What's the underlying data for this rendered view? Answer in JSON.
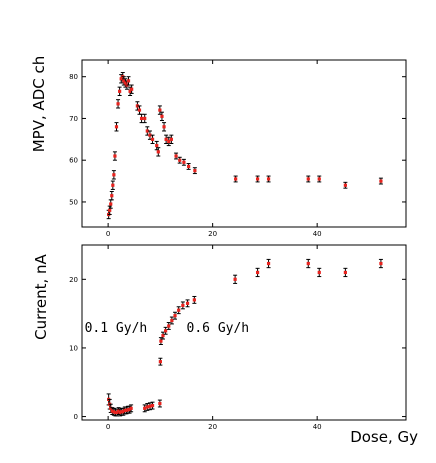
{
  "marker_color": "#e8231e",
  "errorbar_color": "#000000",
  "chart_data": [
    {
      "type": "scatter",
      "title": "",
      "xlabel": "",
      "ylabel": "MPV, ADC ch",
      "xlim": [
        -5,
        57
      ],
      "ylim": [
        44,
        84
      ],
      "xticks": [
        0,
        20,
        40
      ],
      "yticks": [
        50,
        60,
        70,
        80
      ],
      "grid": false,
      "series": [
        {
          "x": [
            0.1,
            0.3,
            0.5,
            0.7,
            0.9,
            1.1,
            1.3,
            1.6,
            1.9,
            2.2,
            2.5,
            2.8,
            3.0,
            3.3,
            3.6,
            3.9,
            4.2,
            4.5,
            5.6,
            6.0,
            6.4,
            7.0,
            7.5,
            8.0,
            8.5,
            9.3,
            9.6,
            9.9,
            10.3,
            10.7,
            11.1,
            11.6,
            12.1,
            13.0,
            13.7,
            14.5,
            15.4,
            16.6,
            24.4,
            28.6,
            30.7,
            38.3,
            40.4,
            45.4,
            52.2
          ],
          "y": [
            47.0,
            48.0,
            49.5,
            51.5,
            54.0,
            56.5,
            61.0,
            68.0,
            73.5,
            76.5,
            79.5,
            80.0,
            79.0,
            78.5,
            78.0,
            79.0,
            76.5,
            77.0,
            73.0,
            72.0,
            70.0,
            70.0,
            67.0,
            66.0,
            65.0,
            63.5,
            62.0,
            72.0,
            70.5,
            68.0,
            65.0,
            64.5,
            65.0,
            61.0,
            60.0,
            59.5,
            58.5,
            57.5,
            55.5,
            55.5,
            55.5,
            55.5,
            55.5,
            54.0,
            55.0
          ],
          "err": [
            1.0,
            1.0,
            1.0,
            1.0,
            1.0,
            1.0,
            1.0,
            1.0,
            1.0,
            1.0,
            1.0,
            1.0,
            1.0,
            1.0,
            1.0,
            1.0,
            1.0,
            1.0,
            1.0,
            1.0,
            1.0,
            1.0,
            1.0,
            1.0,
            1.0,
            1.0,
            1.0,
            1.0,
            1.0,
            1.0,
            1.0,
            1.0,
            1.0,
            0.7,
            0.7,
            0.7,
            0.7,
            0.7,
            0.7,
            0.7,
            0.7,
            0.7,
            0.7,
            0.7,
            0.7
          ]
        }
      ]
    },
    {
      "type": "scatter",
      "title": "",
      "xlabel": "Dose, Gy",
      "ylabel": "Current, nA",
      "xlim": [
        -5,
        57
      ],
      "ylim": [
        -0.5,
        25
      ],
      "xticks": [
        0,
        20,
        40
      ],
      "yticks": [
        0,
        10,
        20
      ],
      "grid": false,
      "annotations": [
        {
          "text": "0.1 Gy/h",
          "x": -4.5,
          "y": 12.3
        },
        {
          "text": "0.6 Gy/h",
          "x": 15.0,
          "y": 12.3
        }
      ],
      "series": [
        {
          "x": [
            0.1,
            0.3,
            0.5,
            0.8,
            1.1,
            1.4,
            1.7,
            2.0,
            2.3,
            2.6,
            2.9,
            3.2,
            3.5,
            3.8,
            4.1,
            4.4,
            7.0,
            7.5,
            8.0,
            8.5,
            9.9,
            10.0,
            10.1,
            10.5,
            11.0,
            11.6,
            12.2,
            12.8,
            13.5,
            14.3,
            15.2,
            16.5,
            24.3,
            28.6,
            30.7,
            38.3,
            40.4,
            45.4,
            52.2
          ],
          "y": [
            2.5,
            1.8,
            1.2,
            0.8,
            0.7,
            0.6,
            0.6,
            0.8,
            0.6,
            0.7,
            0.7,
            0.9,
            0.9,
            1.0,
            1.0,
            1.2,
            1.2,
            1.4,
            1.5,
            1.6,
            1.9,
            8.0,
            11.0,
            11.8,
            12.5,
            13.2,
            14.0,
            14.7,
            15.5,
            16.2,
            16.5,
            17.0,
            20.0,
            21.0,
            22.3,
            22.3,
            21.0,
            21.0,
            22.3
          ],
          "err": [
            0.8,
            0.7,
            0.6,
            0.5,
            0.5,
            0.5,
            0.5,
            0.5,
            0.5,
            0.5,
            0.5,
            0.5,
            0.5,
            0.5,
            0.5,
            0.5,
            0.5,
            0.5,
            0.5,
            0.5,
            0.5,
            0.5,
            0.5,
            0.5,
            0.5,
            0.5,
            0.5,
            0.5,
            0.5,
            0.5,
            0.5,
            0.5,
            0.6,
            0.6,
            0.6,
            0.6,
            0.6,
            0.6,
            0.6
          ]
        }
      ]
    }
  ]
}
